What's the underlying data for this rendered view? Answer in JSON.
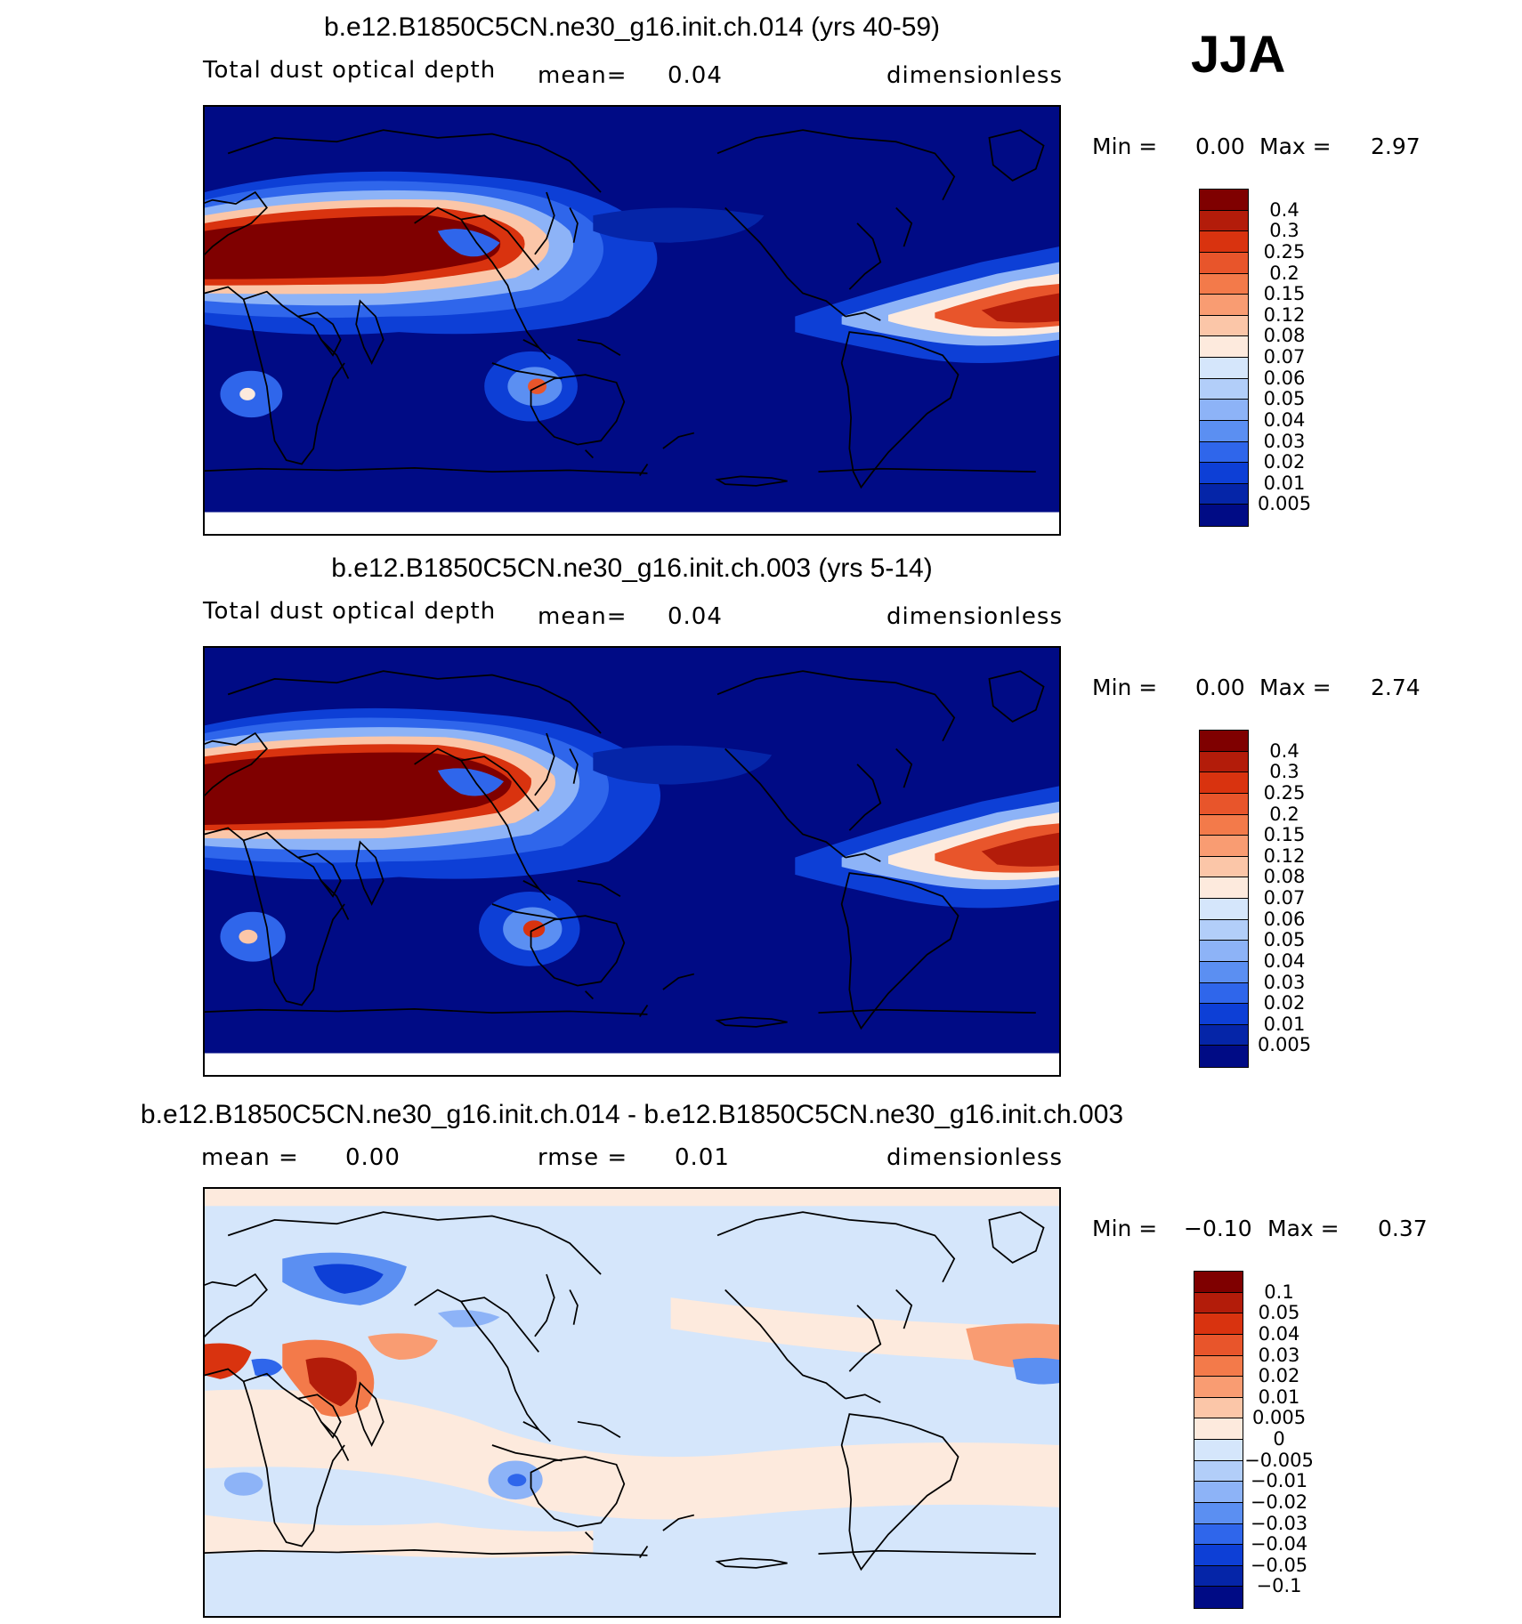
{
  "season": "JJA",
  "panels": [
    {
      "title": "b.e12.B1850C5CN.ne30_g16.init.ch.014 (yrs 40-59)",
      "variable": "Total dust optical depth",
      "stat_label": "mean=",
      "stat_value": "0.04",
      "stat2_label": "",
      "stat2_value": "",
      "units": "dimensionless",
      "min_label": "Min =",
      "min_value": "0.00",
      "max_label": "Max =",
      "max_value": "2.97"
    },
    {
      "title": "b.e12.B1850C5CN.ne30_g16.init.ch.003 (yrs 5-14)",
      "variable": "Total dust optical depth",
      "stat_label": "mean=",
      "stat_value": "0.04",
      "stat2_label": "",
      "stat2_value": "",
      "units": "dimensionless",
      "min_label": "Min =",
      "min_value": "0.00",
      "max_label": "Max =",
      "max_value": "2.74"
    },
    {
      "title": "b.e12.B1850C5CN.ne30_g16.init.ch.014 - b.e12.B1850C5CN.ne30_g16.init.ch.003",
      "variable": "",
      "stat_label": "mean =",
      "stat_value": "0.00",
      "stat2_label": "rmse =",
      "stat2_value": "0.01",
      "units": "dimensionless",
      "min_label": "Min =",
      "min_value": "−0.10",
      "max_label": "Max =",
      "max_value": "0.37"
    }
  ],
  "colorbars": {
    "field": {
      "labels": [
        "0.4",
        "0.3",
        "0.25",
        "0.2",
        "0.15",
        "0.12",
        "0.08",
        "0.07",
        "0.06",
        "0.05",
        "0.04",
        "0.03",
        "0.02",
        "0.01",
        "0.005"
      ],
      "colors": [
        "#7f0000",
        "#b31c0a",
        "#d9330f",
        "#e8552b",
        "#f37a4a",
        "#f99c72",
        "#fbc6a8",
        "#fdeadd",
        "#d5e6fb",
        "#b2cef9",
        "#8db3f7",
        "#5b8ff2",
        "#2f66eb",
        "#0d3fd6",
        "#0525a8",
        "#000b85"
      ]
    },
    "diff": {
      "labels": [
        "0.1",
        "0.05",
        "0.04",
        "0.03",
        "0.02",
        "0.01",
        "0.005",
        "0",
        "−0.005",
        "−0.01",
        "−0.02",
        "−0.03",
        "−0.04",
        "−0.05",
        "−0.1"
      ],
      "colors": [
        "#7f0000",
        "#b31c0a",
        "#d9330f",
        "#e8552b",
        "#f37a4a",
        "#f99c72",
        "#fbc6a8",
        "#fdeadd",
        "#d5e6fb",
        "#b2cef9",
        "#8db3f7",
        "#5b8ff2",
        "#2f66eb",
        "#0d3fd6",
        "#0525a8",
        "#000b85"
      ]
    }
  }
}
